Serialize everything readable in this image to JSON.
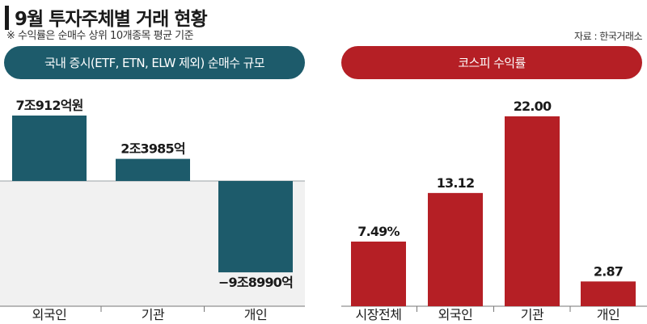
{
  "header": {
    "title": "9월 투자주체별 거래 현황",
    "note": "※ 수익률은 순매수 상위 10개종목 평균 기준",
    "source": "자료 : 한국거래소"
  },
  "colors": {
    "left_accent": "#1d5b6b",
    "right_accent": "#b51f25"
  },
  "chart_data": [
    {
      "type": "bar",
      "title": "국내 증시(ETF, ETN, ELW 제외) 순매수 규모",
      "categories": [
        "외국인",
        "기관",
        "개인"
      ],
      "values": [
        70912,
        23985,
        -98990
      ],
      "value_labels": [
        "7조912억원",
        "2조3985억",
        "−9조8990억"
      ],
      "unit": "억원",
      "ylim": [
        -125000,
        95000
      ]
    },
    {
      "type": "bar",
      "title": "코스피 수익률",
      "categories": [
        "시장전체",
        "외국인",
        "기관",
        "개인"
      ],
      "values": [
        7.49,
        13.12,
        22.0,
        2.87
      ],
      "value_labels": [
        "7.49%",
        "13.12",
        "22.00",
        "2.87"
      ],
      "unit": "%",
      "ylim": [
        0,
        24
      ]
    }
  ]
}
